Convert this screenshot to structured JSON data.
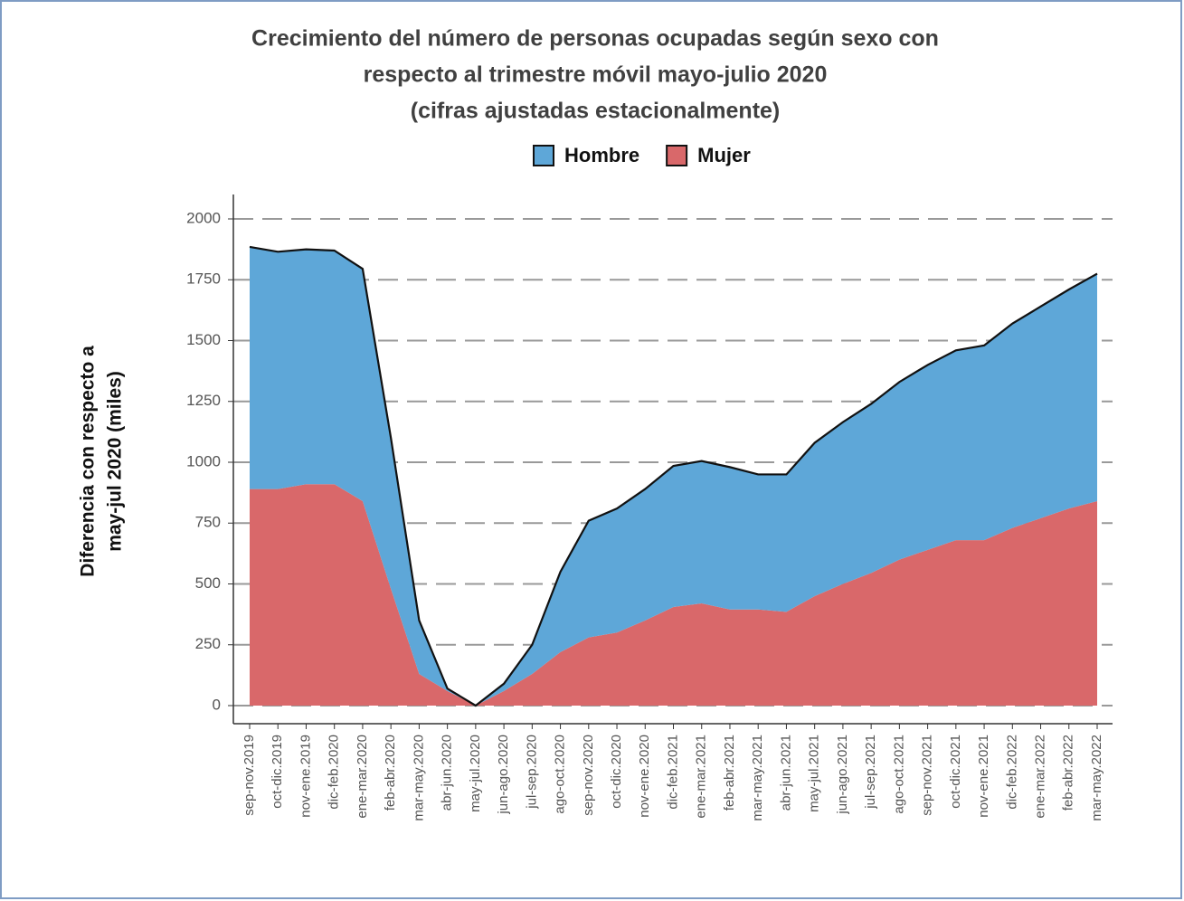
{
  "chart_data": {
    "type": "stacked_area",
    "title": [
      "Crecimiento del número de personas ocupadas según sexo con",
      "respecto al trimestre móvil mayo-julio 2020",
      "(cifras ajustadas estacionalmente)"
    ],
    "y_label": [
      "Diferencia con respecto a",
      "may-jul 2020 (miles)"
    ],
    "categories": [
      "sep-nov.2019",
      "oct-dic.2019",
      "nov-ene.2019",
      "dic-feb.2020",
      "ene-mar.2020",
      "feb-abr.2020",
      "mar-may.2020",
      "abr-jun.2020",
      "may-jul.2020",
      "jun-ago.2020",
      "jul-sep.2020",
      "ago-oct.2020",
      "sep-nov.2020",
      "oct-dic.2020",
      "nov-ene.2020",
      "dic-feb.2021",
      "ene-mar.2021",
      "feb-abr.2021",
      "mar-may.2021",
      "abr-jun.2021",
      "may-jul.2021",
      "jun-ago.2021",
      "jul-sep.2021",
      "ago-oct.2021",
      "sep-nov.2021",
      "oct-dic.2021",
      "nov-ene.2021",
      "dic-feb.2022",
      "ene-mar.2022",
      "feb-abr.2022",
      "mar-may.2022"
    ],
    "series": [
      {
        "name": "Hombre",
        "color": "#5ea7d8",
        "values": [
          995,
          975,
          965,
          960,
          955,
          620,
          220,
          10,
          0,
          30,
          120,
          330,
          480,
          510,
          540,
          580,
          585,
          585,
          555,
          565,
          630,
          665,
          695,
          730,
          760,
          780,
          800,
          840,
          870,
          900,
          935
        ]
      },
      {
        "name": "Mujer",
        "color": "#d9686a",
        "values": [
          890,
          890,
          910,
          910,
          840,
          480,
          130,
          60,
          0,
          60,
          130,
          220,
          280,
          300,
          350,
          405,
          420,
          395,
          395,
          385,
          450,
          500,
          545,
          600,
          640,
          680,
          680,
          730,
          770,
          810,
          840
        ]
      }
    ],
    "ylim": [
      0,
      2000
    ],
    "yticks": [
      0,
      250,
      500,
      750,
      1000,
      1250,
      1500,
      1750,
      2000
    ],
    "grid": true,
    "legend": "top"
  }
}
